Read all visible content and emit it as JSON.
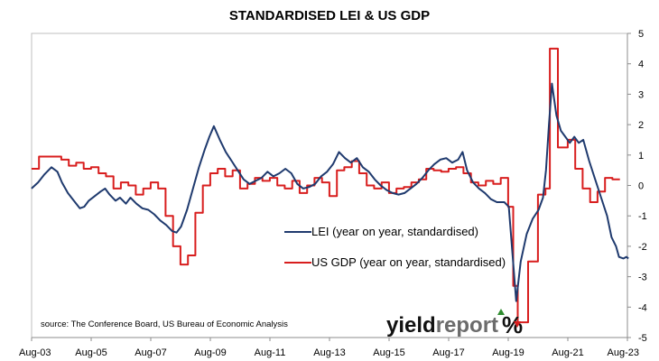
{
  "chart_data": {
    "type": "line",
    "title": "STANDARDISED LEI & US GDP",
    "xlabel": "",
    "ylabel": "",
    "x_ticks": [
      "Aug-03",
      "Aug-05",
      "Aug-07",
      "Aug-09",
      "Aug-11",
      "Aug-13",
      "Aug-15",
      "Aug-17",
      "Aug-19",
      "Aug-21",
      "Aug-23"
    ],
    "ylim": [
      -5,
      5
    ],
    "y_ticks": [
      5,
      4,
      3,
      2,
      1,
      0,
      -1,
      -2,
      -3,
      -4,
      -5
    ],
    "x_range": [
      2003.583,
      2023.583
    ],
    "grid": false,
    "legend_position": "center-right",
    "colors": {
      "lei": "#1f3a6e",
      "gdp": "#d81e1e"
    },
    "series": [
      {
        "name": "LEI (year on year, standardised)",
        "color": "#1f3a6e",
        "points": [
          [
            2003.58,
            -0.1
          ],
          [
            2003.8,
            0.1
          ],
          [
            2004.0,
            0.35
          ],
          [
            2004.25,
            0.6
          ],
          [
            2004.45,
            0.45
          ],
          [
            2004.6,
            0.1
          ],
          [
            2004.8,
            -0.25
          ],
          [
            2005.0,
            -0.5
          ],
          [
            2005.2,
            -0.75
          ],
          [
            2005.35,
            -0.7
          ],
          [
            2005.5,
            -0.5
          ],
          [
            2005.7,
            -0.35
          ],
          [
            2005.9,
            -0.2
          ],
          [
            2006.05,
            -0.1
          ],
          [
            2006.2,
            -0.3
          ],
          [
            2006.4,
            -0.5
          ],
          [
            2006.55,
            -0.4
          ],
          [
            2006.75,
            -0.6
          ],
          [
            2006.9,
            -0.4
          ],
          [
            2007.1,
            -0.6
          ],
          [
            2007.3,
            -0.75
          ],
          [
            2007.5,
            -0.8
          ],
          [
            2007.7,
            -0.95
          ],
          [
            2007.9,
            -1.15
          ],
          [
            2008.1,
            -1.3
          ],
          [
            2008.3,
            -1.5
          ],
          [
            2008.45,
            -1.55
          ],
          [
            2008.6,
            -1.35
          ],
          [
            2008.8,
            -0.8
          ],
          [
            2009.0,
            -0.1
          ],
          [
            2009.2,
            0.6
          ],
          [
            2009.4,
            1.2
          ],
          [
            2009.55,
            1.6
          ],
          [
            2009.7,
            1.95
          ],
          [
            2009.9,
            1.5
          ],
          [
            2010.1,
            1.1
          ],
          [
            2010.3,
            0.8
          ],
          [
            2010.5,
            0.5
          ],
          [
            2010.7,
            0.2
          ],
          [
            2010.9,
            0.05
          ],
          [
            2011.1,
            0.15
          ],
          [
            2011.3,
            0.25
          ],
          [
            2011.5,
            0.45
          ],
          [
            2011.7,
            0.3
          ],
          [
            2011.9,
            0.4
          ],
          [
            2012.1,
            0.55
          ],
          [
            2012.3,
            0.4
          ],
          [
            2012.5,
            0.05
          ],
          [
            2012.7,
            -0.1
          ],
          [
            2012.9,
            -0.05
          ],
          [
            2013.1,
            0.05
          ],
          [
            2013.3,
            0.3
          ],
          [
            2013.5,
            0.45
          ],
          [
            2013.7,
            0.7
          ],
          [
            2013.9,
            1.1
          ],
          [
            2014.1,
            0.9
          ],
          [
            2014.3,
            0.75
          ],
          [
            2014.5,
            0.9
          ],
          [
            2014.7,
            0.6
          ],
          [
            2014.9,
            0.45
          ],
          [
            2015.1,
            0.2
          ],
          [
            2015.3,
            0.0
          ],
          [
            2015.5,
            -0.15
          ],
          [
            2015.7,
            -0.25
          ],
          [
            2015.9,
            -0.3
          ],
          [
            2016.1,
            -0.25
          ],
          [
            2016.3,
            -0.1
          ],
          [
            2016.5,
            0.05
          ],
          [
            2016.7,
            0.25
          ],
          [
            2016.9,
            0.5
          ],
          [
            2017.1,
            0.7
          ],
          [
            2017.3,
            0.85
          ],
          [
            2017.5,
            0.9
          ],
          [
            2017.7,
            0.75
          ],
          [
            2017.9,
            0.85
          ],
          [
            2018.05,
            1.1
          ],
          [
            2018.2,
            0.5
          ],
          [
            2018.4,
            0.1
          ],
          [
            2018.6,
            -0.1
          ],
          [
            2018.8,
            -0.25
          ],
          [
            2019.0,
            -0.45
          ],
          [
            2019.2,
            -0.55
          ],
          [
            2019.45,
            -0.55
          ],
          [
            2019.6,
            -0.7
          ],
          [
            2019.85,
            -3.8
          ],
          [
            2020.0,
            -2.5
          ],
          [
            2020.2,
            -1.6
          ],
          [
            2020.4,
            -1.1
          ],
          [
            2020.6,
            -0.8
          ],
          [
            2020.75,
            -0.4
          ],
          [
            2020.85,
            0.5
          ],
          [
            2020.95,
            2.0
          ],
          [
            2021.05,
            3.35
          ],
          [
            2021.2,
            2.3
          ],
          [
            2021.35,
            1.8
          ],
          [
            2021.5,
            1.6
          ],
          [
            2021.65,
            1.4
          ],
          [
            2021.8,
            1.6
          ],
          [
            2021.95,
            1.4
          ],
          [
            2022.1,
            1.5
          ],
          [
            2022.3,
            0.8
          ],
          [
            2022.5,
            0.2
          ],
          [
            2022.7,
            -0.4
          ],
          [
            2022.9,
            -1.0
          ],
          [
            2023.05,
            -1.7
          ],
          [
            2023.2,
            -2.0
          ],
          [
            2023.3,
            -2.35
          ],
          [
            2023.45,
            -2.4
          ],
          [
            2023.55,
            -2.35
          ],
          [
            2023.62,
            -2.4
          ]
        ]
      },
      {
        "name": "US GDP (year on year, standardised)",
        "color": "#d81e1e",
        "points": [
          [
            2003.58,
            0.55
          ],
          [
            2003.83,
            0.55
          ],
          [
            2003.83,
            0.95
          ],
          [
            2004.58,
            0.95
          ],
          [
            2004.58,
            0.85
          ],
          [
            2004.83,
            0.85
          ],
          [
            2004.83,
            0.65
          ],
          [
            2005.08,
            0.65
          ],
          [
            2005.08,
            0.75
          ],
          [
            2005.33,
            0.75
          ],
          [
            2005.33,
            0.55
          ],
          [
            2005.58,
            0.55
          ],
          [
            2005.58,
            0.6
          ],
          [
            2005.83,
            0.6
          ],
          [
            2005.83,
            0.4
          ],
          [
            2006.08,
            0.4
          ],
          [
            2006.08,
            0.3
          ],
          [
            2006.33,
            0.3
          ],
          [
            2006.33,
            -0.1
          ],
          [
            2006.58,
            -0.1
          ],
          [
            2006.58,
            0.1
          ],
          [
            2006.83,
            0.1
          ],
          [
            2006.83,
            0.0
          ],
          [
            2007.08,
            0.0
          ],
          [
            2007.08,
            -0.3
          ],
          [
            2007.33,
            -0.3
          ],
          [
            2007.33,
            -0.1
          ],
          [
            2007.58,
            -0.1
          ],
          [
            2007.58,
            0.1
          ],
          [
            2007.83,
            0.1
          ],
          [
            2007.83,
            -0.1
          ],
          [
            2008.08,
            -0.1
          ],
          [
            2008.08,
            -1.0
          ],
          [
            2008.33,
            -1.0
          ],
          [
            2008.33,
            -2.0
          ],
          [
            2008.58,
            -2.0
          ],
          [
            2008.58,
            -2.6
          ],
          [
            2008.83,
            -2.6
          ],
          [
            2008.83,
            -2.3
          ],
          [
            2009.08,
            -2.3
          ],
          [
            2009.08,
            -0.9
          ],
          [
            2009.33,
            -0.9
          ],
          [
            2009.33,
            0.0
          ],
          [
            2009.58,
            0.0
          ],
          [
            2009.58,
            0.4
          ],
          [
            2009.83,
            0.4
          ],
          [
            2009.83,
            0.55
          ],
          [
            2010.08,
            0.55
          ],
          [
            2010.08,
            0.3
          ],
          [
            2010.33,
            0.3
          ],
          [
            2010.33,
            0.5
          ],
          [
            2010.58,
            0.5
          ],
          [
            2010.58,
            -0.1
          ],
          [
            2010.83,
            -0.1
          ],
          [
            2010.83,
            0.05
          ],
          [
            2011.08,
            0.05
          ],
          [
            2011.08,
            0.25
          ],
          [
            2011.33,
            0.25
          ],
          [
            2011.33,
            0.15
          ],
          [
            2011.58,
            0.15
          ],
          [
            2011.58,
            0.25
          ],
          [
            2011.83,
            0.25
          ],
          [
            2011.83,
            0.0
          ],
          [
            2012.08,
            0.0
          ],
          [
            2012.08,
            -0.1
          ],
          [
            2012.33,
            -0.1
          ],
          [
            2012.33,
            0.15
          ],
          [
            2012.58,
            0.15
          ],
          [
            2012.58,
            -0.25
          ],
          [
            2012.83,
            -0.25
          ],
          [
            2012.83,
            0.0
          ],
          [
            2013.08,
            0.0
          ],
          [
            2013.08,
            0.25
          ],
          [
            2013.33,
            0.25
          ],
          [
            2013.33,
            0.1
          ],
          [
            2013.58,
            0.1
          ],
          [
            2013.58,
            -0.35
          ],
          [
            2013.83,
            -0.35
          ],
          [
            2013.83,
            0.5
          ],
          [
            2014.08,
            0.5
          ],
          [
            2014.08,
            0.6
          ],
          [
            2014.33,
            0.6
          ],
          [
            2014.33,
            0.8
          ],
          [
            2014.58,
            0.8
          ],
          [
            2014.58,
            0.4
          ],
          [
            2014.83,
            0.4
          ],
          [
            2014.83,
            0.0
          ],
          [
            2015.08,
            0.0
          ],
          [
            2015.08,
            -0.1
          ],
          [
            2015.33,
            -0.1
          ],
          [
            2015.33,
            0.1
          ],
          [
            2015.58,
            0.1
          ],
          [
            2015.58,
            -0.25
          ],
          [
            2015.83,
            -0.25
          ],
          [
            2015.83,
            -0.1
          ],
          [
            2016.08,
            -0.1
          ],
          [
            2016.08,
            -0.05
          ],
          [
            2016.33,
            -0.05
          ],
          [
            2016.33,
            0.1
          ],
          [
            2016.58,
            0.1
          ],
          [
            2016.58,
            0.2
          ],
          [
            2016.83,
            0.2
          ],
          [
            2016.83,
            0.55
          ],
          [
            2017.08,
            0.55
          ],
          [
            2017.08,
            0.5
          ],
          [
            2017.33,
            0.5
          ],
          [
            2017.33,
            0.45
          ],
          [
            2017.58,
            0.45
          ],
          [
            2017.58,
            0.55
          ],
          [
            2017.83,
            0.55
          ],
          [
            2017.83,
            0.6
          ],
          [
            2018.08,
            0.6
          ],
          [
            2018.08,
            0.4
          ],
          [
            2018.33,
            0.4
          ],
          [
            2018.33,
            0.1
          ],
          [
            2018.58,
            0.1
          ],
          [
            2018.58,
            0.0
          ],
          [
            2018.83,
            0.0
          ],
          [
            2018.83,
            0.15
          ],
          [
            2019.08,
            0.15
          ],
          [
            2019.08,
            0.05
          ],
          [
            2019.33,
            0.05
          ],
          [
            2019.33,
            0.25
          ],
          [
            2019.58,
            0.25
          ],
          [
            2019.58,
            -0.7
          ],
          [
            2019.75,
            -0.7
          ],
          [
            2019.75,
            -3.3
          ],
          [
            2019.9,
            -3.3
          ],
          [
            2019.9,
            -4.5
          ],
          [
            2020.25,
            -4.5
          ],
          [
            2020.25,
            -2.5
          ],
          [
            2020.58,
            -2.5
          ],
          [
            2020.58,
            -0.3
          ],
          [
            2020.83,
            -0.3
          ],
          [
            2020.83,
            -0.1
          ],
          [
            2020.98,
            -0.1
          ],
          [
            2020.98,
            4.5
          ],
          [
            2021.25,
            4.5
          ],
          [
            2021.25,
            1.25
          ],
          [
            2021.58,
            1.25
          ],
          [
            2021.58,
            1.5
          ],
          [
            2021.83,
            1.5
          ],
          [
            2021.83,
            0.55
          ],
          [
            2022.08,
            0.55
          ],
          [
            2022.08,
            -0.1
          ],
          [
            2022.33,
            -0.1
          ],
          [
            2022.33,
            -0.55
          ],
          [
            2022.58,
            -0.55
          ],
          [
            2022.58,
            -0.2
          ],
          [
            2022.83,
            -0.2
          ],
          [
            2022.83,
            0.25
          ],
          [
            2023.08,
            0.25
          ],
          [
            2023.08,
            0.2
          ],
          [
            2023.33,
            0.2
          ]
        ]
      }
    ],
    "source_note": "source: The Conference Board, US Bureau of Economic Analysis",
    "logo": {
      "part1": "yield",
      "part2": "report",
      "part3": "%"
    }
  }
}
